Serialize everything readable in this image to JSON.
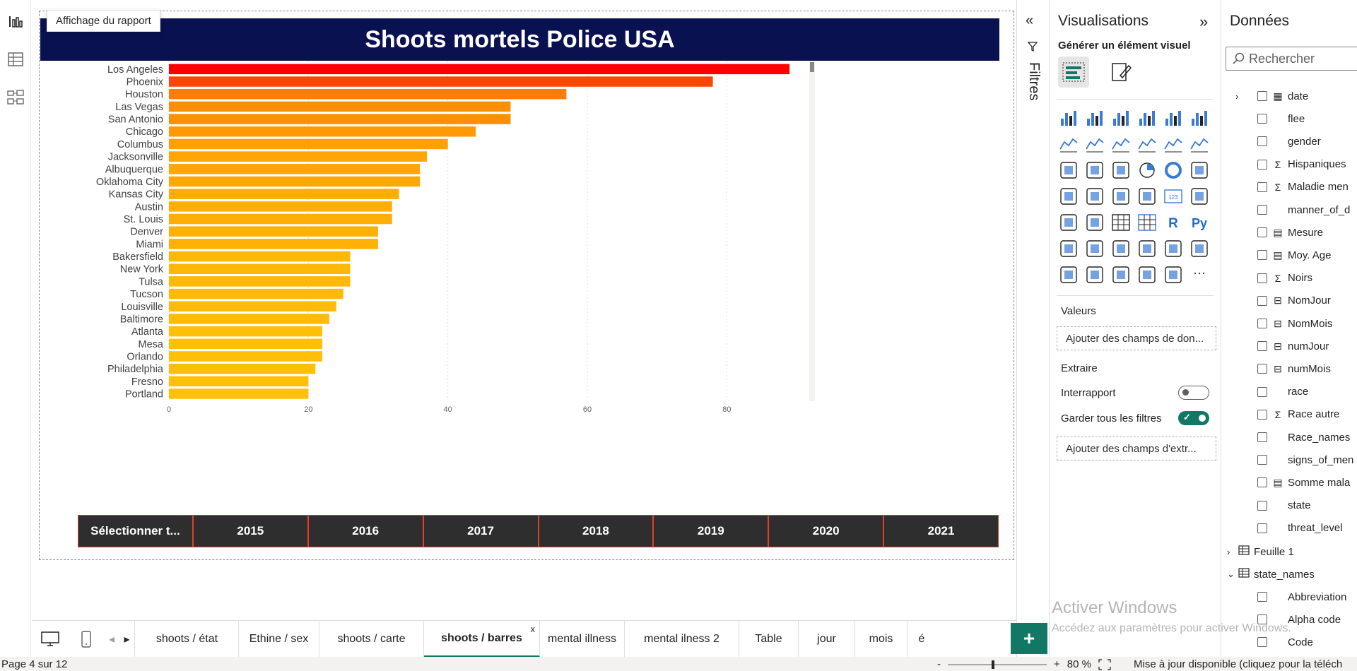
{
  "report": {
    "tooltip": "Affichage du rapport",
    "title": "Shoots mortels Police USA"
  },
  "chart_data": {
    "type": "bar",
    "orientation": "horizontal",
    "categories": [
      "Los Angeles",
      "Phoenix",
      "Houston",
      "Las Vegas",
      "San Antonio",
      "Chicago",
      "Columbus",
      "Jacksonville",
      "Albuquerque",
      "Oklahoma City",
      "Kansas City",
      "Austin",
      "St. Louis",
      "Denver",
      "Miami",
      "Bakersfield",
      "New York",
      "Tulsa",
      "Tucson",
      "Louisville",
      "Baltimore",
      "Atlanta",
      "Mesa",
      "Orlando",
      "Philadelphia",
      "Fresno",
      "Portland"
    ],
    "values": [
      89,
      78,
      57,
      49,
      49,
      44,
      40,
      37,
      36,
      36,
      33,
      32,
      32,
      30,
      30,
      26,
      26,
      26,
      25,
      24,
      23,
      22,
      22,
      22,
      21,
      20,
      20
    ],
    "xlim": [
      0,
      90
    ],
    "xticks": [
      0,
      20,
      40,
      60,
      80
    ],
    "grid": true,
    "colors": {
      "max": "#fd0000",
      "min": "#ffc107"
    }
  },
  "slicer": {
    "items": [
      "Sélectionner t...",
      "2015",
      "2016",
      "2017",
      "2018",
      "2019",
      "2020",
      "2021"
    ]
  },
  "filters": {
    "label": "Filtres"
  },
  "viz": {
    "title": "Visualisations",
    "subtitle": "Générer un élément visuel",
    "values_label": "Valeurs",
    "values_well": "Ajouter des champs de don...",
    "drill_label": "Extraire",
    "cross_report": "Interrapport",
    "keep_filters": "Garder tous les filtres",
    "drill_well": "Ajouter des champs d'extr..."
  },
  "data_pane": {
    "title": "Données",
    "search_placeholder": "Rechercher",
    "fields": [
      {
        "name": "date",
        "icon": "calendar-icon",
        "expandable": true
      },
      {
        "name": "flee",
        "icon": "",
        "expandable": false
      },
      {
        "name": "gender",
        "icon": "",
        "expandable": false
      },
      {
        "name": "Hispaniques",
        "icon": "sigma-icon",
        "expandable": false
      },
      {
        "name": "Maladie men",
        "icon": "sigma-icon",
        "expandable": false
      },
      {
        "name": "manner_of_d",
        "icon": "",
        "expandable": false
      },
      {
        "name": "Mesure",
        "icon": "calculator-icon",
        "expandable": false
      },
      {
        "name": "Moy. Age",
        "icon": "calculator-icon",
        "expandable": false
      },
      {
        "name": "Noirs",
        "icon": "sigma-icon",
        "expandable": false
      },
      {
        "name": "NomJour",
        "icon": "calc-column-icon",
        "expandable": false
      },
      {
        "name": "NomMois",
        "icon": "calc-column-icon",
        "expandable": false
      },
      {
        "name": "numJour",
        "icon": "calc-column-icon",
        "expandable": false
      },
      {
        "name": "numMois",
        "icon": "calc-column-icon",
        "expandable": false
      },
      {
        "name": "race",
        "icon": "",
        "expandable": false
      },
      {
        "name": "Race autre",
        "icon": "sigma-icon",
        "expandable": false
      },
      {
        "name": "Race_names",
        "icon": "",
        "expandable": false
      },
      {
        "name": "signs_of_men",
        "icon": "",
        "expandable": false
      },
      {
        "name": "Somme mala",
        "icon": "calculator-icon",
        "expandable": false
      },
      {
        "name": "state",
        "icon": "",
        "expandable": false
      },
      {
        "name": "threat_level",
        "icon": "",
        "expandable": false
      }
    ],
    "tables": [
      {
        "name": "Feuille 1",
        "expanded": false
      },
      {
        "name": "state_names",
        "expanded": true
      }
    ],
    "sub_fields": [
      "Abbreviation",
      "Alpha code",
      "Code"
    ]
  },
  "watermark": {
    "line1": "Activer Windows",
    "line2": "Accédez aux paramètres pour activer Windows."
  },
  "tabs": [
    "shoots / état",
    "Ethine / sex",
    "shoots / carte",
    "shoots / barres",
    "mental illness",
    "mental ilness 2",
    "Table",
    "jour",
    "mois",
    "é"
  ],
  "active_tab": "shoots / barres",
  "status": {
    "page": "Page 4 sur 12",
    "zoom": "80 %",
    "update": "Mise à jour disponible (cliquez pour la téléch"
  }
}
